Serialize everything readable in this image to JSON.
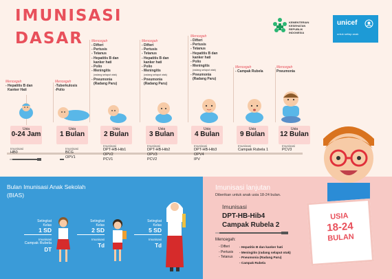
{
  "title_line1": "IMUNISASI",
  "title_line2": "DASAR",
  "kemenkes": {
    "line1": "KEMENTERIAN",
    "line2": "KESEHATAN",
    "line3": "REPUBLIK",
    "line4": "INDONESIA"
  },
  "unicef": {
    "name": "unicef",
    "tagline": "untuk setiap anak"
  },
  "prevent_heading": "Mencegah",
  "age_unit": "Usia",
  "imun_heading": "Imunisasi",
  "stages": [
    {
      "prevents": [
        "- Hepatitis B dan",
        "  Kanker Hati"
      ],
      "age": "0-24 Jam",
      "vaccines": [
        "HB0"
      ]
    },
    {
      "prevents": [
        "-Tuberkulosis",
        "-Polio"
      ],
      "age": "1 Bulan",
      "vaccines": [
        "BCG",
        "OPV1"
      ]
    },
    {
      "prevents": [
        "- Difteri",
        "- Pertusis",
        "- Tetanus",
        "- Hepatitis B dan",
        "  kanker hati",
        "- Polio",
        "- Meningitis",
        "  (radang selaput otak)",
        "- Pneumonia",
        "  (Radang Paru)"
      ],
      "age": "2 Bulan",
      "vaccines": [
        "DPT-HB-Hib1",
        "OPV2",
        "PCV1"
      ]
    },
    {
      "prevents": [
        "- Difteri",
        "- Pertusis",
        "- Tetanus",
        "- Hepatitis B dan",
        "  kanker hati",
        "- Polio",
        "- Meningitis",
        "  (radang selaput otak)",
        "- Pneumonia",
        "  (Radang Paru)"
      ],
      "age": "3 Bulan",
      "vaccines": [
        "DPT-HB-Hib2",
        "OPV3",
        "PCV2"
      ]
    },
    {
      "prevents": [
        "- Difteri",
        "- Pertusis",
        "- Tetanus",
        "- Hepatitis B dan",
        "  kanker hati",
        "- Polio",
        "- Meningitis",
        "  (radang selaput otak)",
        "- Pneumonia",
        "  (Radang Paru)"
      ],
      "age": "4 Bulan",
      "vaccines": [
        "DPT-HB-Hib3",
        "OPV4",
        "IPV"
      ]
    },
    {
      "prevents": [
        "- Campak Rubela"
      ],
      "age": "9 Bulan",
      "vaccines": [
        "Campak Rubela 1"
      ]
    },
    {
      "prevents": [
        "Pneumonia"
      ],
      "age": "12 Bulan",
      "vaccines": [
        "PCV3"
      ]
    }
  ],
  "bias": {
    "title1": "Bulan Imunisasi Anak Sekolah",
    "title2": "(BIAS)",
    "grade_label1": "Setingkat",
    "grade_label2": "Kelas",
    "grades": [
      {
        "kelas": "1 SD",
        "imun": "Imunisasi",
        "v1": "Campak Rubela",
        "v2": "DT"
      },
      {
        "kelas": "2 SD",
        "imun": "Imunisasi",
        "v1": "",
        "v2": "Td"
      },
      {
        "kelas": "5 SD",
        "imun": "Imunisasi",
        "v1": "",
        "v2": "Td"
      }
    ]
  },
  "lanjutan": {
    "title": "Imunisasi lanjutan",
    "subtitle": "Diberikan untuk anak usia 18-24 bulan.",
    "imun_label": "Imunisasi",
    "vaccine1": "DPT-HB-Hib4",
    "vaccine2": "Campak Rubela 2",
    "prevent_label": "Mencegah:",
    "list_left": [
      "- Difteri",
      "- Pertusis",
      "- Tetanus"
    ],
    "list_right": [
      "- Hepatitis B dan kanker hati",
      "- Meningitis (radang selaput otak)",
      "- Pneumonia (Radang Paru)",
      "- Campak Rubela"
    ]
  },
  "sign": {
    "line1": "USIA",
    "line2": "18-24",
    "line3": "BULAN"
  }
}
